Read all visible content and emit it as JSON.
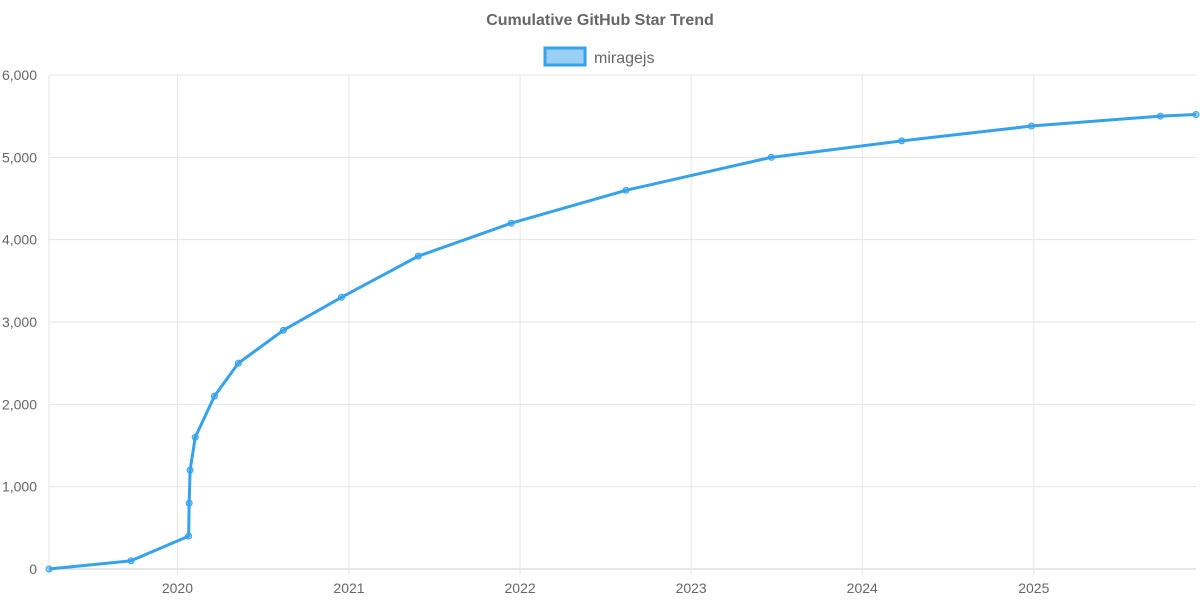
{
  "chart_data": {
    "type": "line",
    "title": "Cumulative GitHub Star Trend",
    "xlabel": "",
    "ylabel": "",
    "legend_position": "top",
    "grid": true,
    "xlim": [
      "2019-04-02",
      "2025-12-13"
    ],
    "ylim": [
      0,
      6000
    ],
    "x_ticks": [
      "2020",
      "2021",
      "2022",
      "2023",
      "2024",
      "2025"
    ],
    "y_ticks": [
      "0",
      "1,000",
      "2,000",
      "3,000",
      "4,000",
      "5,000",
      "6,000"
    ],
    "colors": {
      "line": "#36a2eb",
      "fill": "#9ad0f5"
    },
    "series": [
      {
        "name": "miragejs",
        "x": [
          "2019-04-02",
          "2019-09-24",
          "2020-01-25",
          "2020-01-26",
          "2020-01-28",
          "2020-02-08",
          "2020-03-20",
          "2020-05-10",
          "2020-08-14",
          "2020-12-16",
          "2021-05-29",
          "2021-12-13",
          "2022-08-15",
          "2023-06-21",
          "2024-03-25",
          "2024-12-27",
          "2025-09-28",
          "2025-12-13"
        ],
        "values": [
          0,
          100,
          400,
          800,
          1200,
          1600,
          2100,
          2500,
          2900,
          3300,
          3800,
          4200,
          4600,
          5000,
          5200,
          5380,
          5500,
          5520
        ]
      }
    ]
  }
}
